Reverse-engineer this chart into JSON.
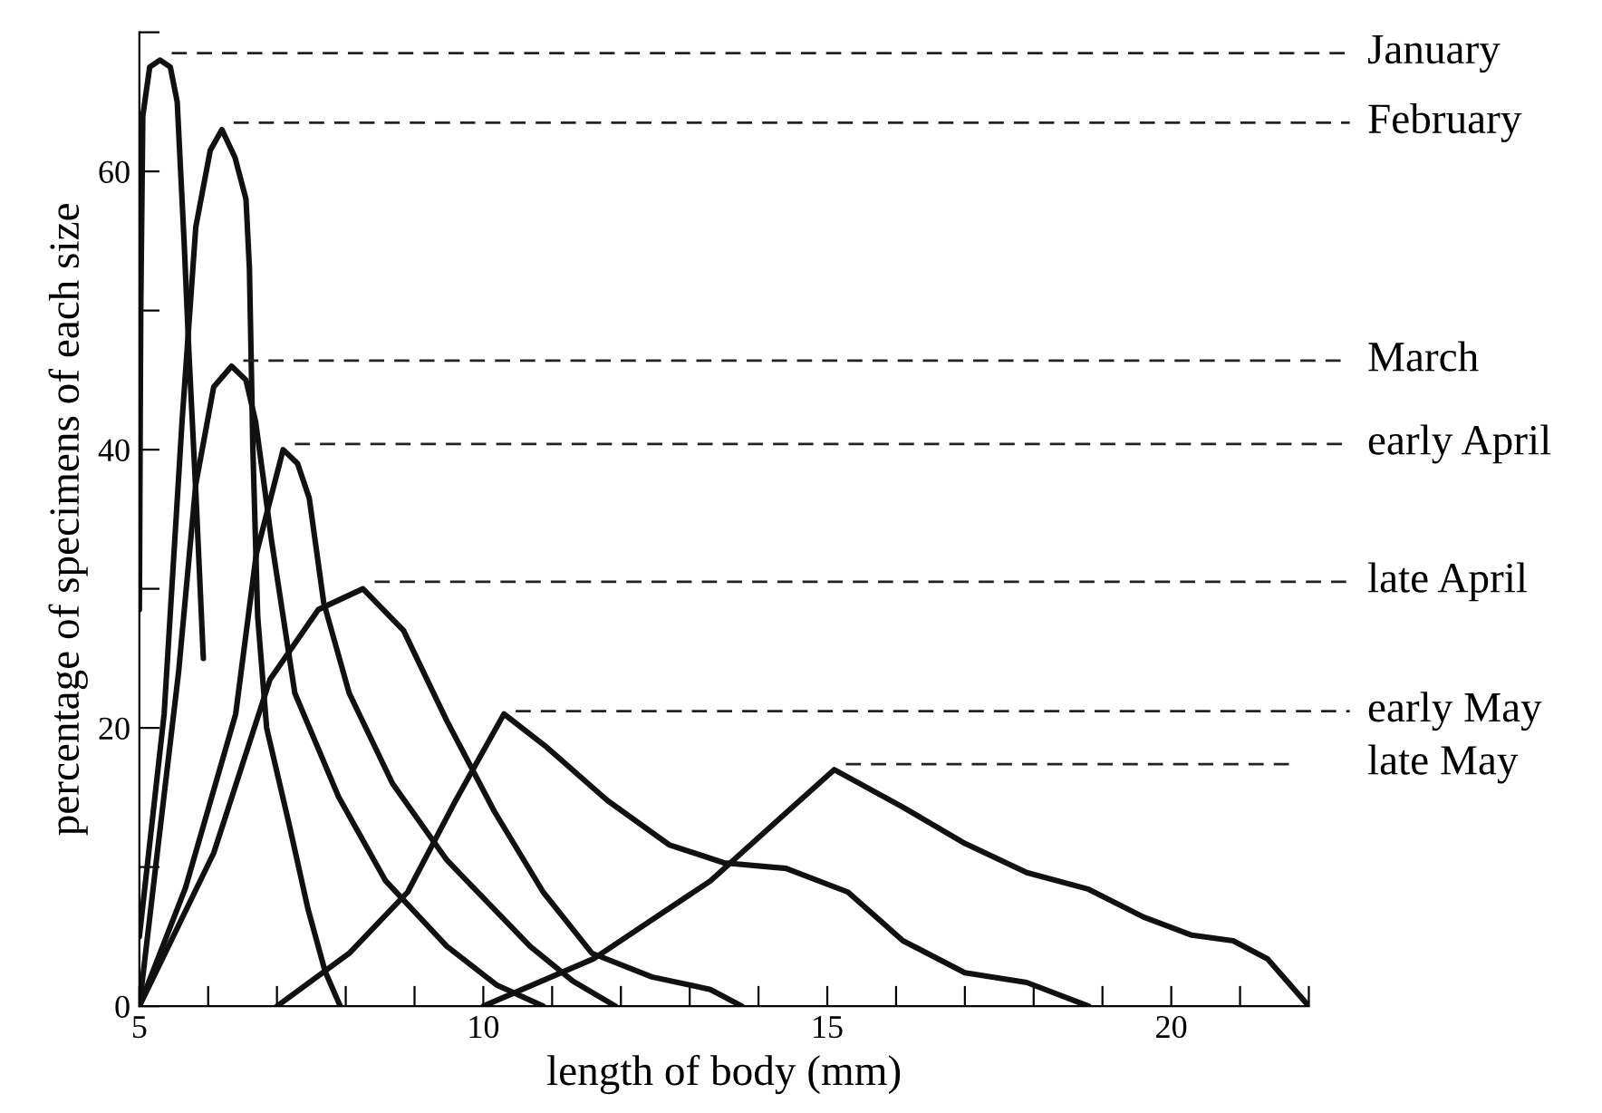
{
  "chart_data": {
    "type": "line",
    "xlabel": "length of body (mm)",
    "ylabel": "percentage of specimens of each size",
    "xlim": [
      5,
      22
    ],
    "ylim": [
      0,
      70
    ],
    "xticks": [
      5,
      {
        "value": 6,
        "label": null
      },
      {
        "value": 7,
        "label": null
      },
      {
        "value": 8,
        "label": null
      },
      {
        "value": 9,
        "label": null
      },
      10,
      {
        "value": 11,
        "label": null
      },
      {
        "value": 12,
        "label": null
      },
      {
        "value": 13,
        "label": null
      },
      {
        "value": 14,
        "label": null
      },
      15,
      {
        "value": 16,
        "label": null
      },
      {
        "value": 17,
        "label": null
      },
      {
        "value": 18,
        "label": null
      },
      {
        "value": 19,
        "label": null
      },
      20,
      {
        "value": 21,
        "label": null
      },
      {
        "value": 22,
        "label": null
      }
    ],
    "yticks": [
      0,
      {
        "value": 10,
        "label": null
      },
      20,
      {
        "value": 30,
        "label": null
      },
      40,
      {
        "value": 50,
        "label": null
      },
      60,
      {
        "value": 70,
        "label": null
      }
    ],
    "grid": false,
    "legend": false,
    "marker": "none",
    "line_style": "solid",
    "series": [
      {
        "color": "#111111",
        "x": [
          5.0,
          5.02,
          5.05,
          5.15,
          5.3,
          5.45,
          5.55,
          5.6,
          5.65,
          5.72,
          5.82,
          5.93
        ],
        "values": [
          28.5,
          50,
          64,
          67.5,
          68,
          67.5,
          65,
          60,
          55,
          47,
          37,
          25
        ]
      },
      {
        "color": "#111111",
        "x": [
          5.0,
          5.36,
          5.62,
          5.82,
          6.03,
          6.2,
          6.39,
          6.55,
          6.6,
          6.65,
          6.72,
          6.85,
          7.18,
          7.45,
          7.7,
          7.92
        ],
        "values": [
          5,
          21,
          42,
          56,
          61.5,
          63,
          61,
          58,
          53,
          40,
          28,
          20,
          13,
          7,
          2.5,
          0
        ]
      },
      {
        "color": "#111111",
        "x": [
          5.0,
          5.26,
          5.57,
          5.82,
          6.08,
          6.34,
          6.55,
          6.69,
          6.8,
          6.92,
          7.26,
          7.9,
          8.58,
          9.47,
          10.2,
          10.87
        ],
        "values": [
          0,
          11,
          24,
          37.5,
          44.5,
          46,
          45,
          42,
          38,
          33.5,
          22.5,
          15,
          9,
          4.3,
          1.5,
          0
        ]
      },
      {
        "color": "#111111",
        "x": [
          5.0,
          5.67,
          6.4,
          6.7,
          7.09,
          7.3,
          7.47,
          7.68,
          8.05,
          8.68,
          9.47,
          10.68,
          11.3,
          11.92
        ],
        "values": [
          0,
          8.5,
          21,
          32.5,
          40,
          39,
          36.5,
          29,
          22.5,
          16,
          10.5,
          4.3,
          1.8,
          0
        ]
      },
      {
        "color": "#111111",
        "x": [
          5.0,
          6.08,
          6.9,
          7.6,
          8.25,
          8.84,
          9.47,
          10.16,
          10.87,
          11.58,
          12.45,
          13.3,
          13.76
        ],
        "values": [
          0,
          11,
          23.5,
          28.5,
          30,
          27,
          20.5,
          14,
          8.2,
          3.8,
          2.1,
          1.2,
          0
        ]
      },
      {
        "color": "#111111",
        "x": [
          7.0,
          8.05,
          8.9,
          9.6,
          10.3,
          10.9,
          11.8,
          12.7,
          13.5,
          14.4,
          15.3,
          16.1,
          17.0,
          17.9,
          18.8
        ],
        "values": [
          0,
          3.8,
          8.2,
          14.8,
          21,
          18.7,
          14.8,
          11.6,
          10.3,
          9.9,
          8.2,
          4.7,
          2.4,
          1.7,
          0
        ]
      },
      {
        "color": "#111111",
        "x": [
          10.0,
          11.6,
          13.3,
          14.2,
          15.1,
          16.1,
          17.0,
          17.9,
          18.8,
          19.6,
          20.3,
          20.9,
          21.4,
          22.0
        ],
        "values": [
          0,
          3.4,
          9,
          13,
          17,
          14.3,
          11.7,
          9.6,
          8.4,
          6.4,
          5.1,
          4.7,
          3.4,
          0
        ]
      }
    ],
    "ref_lines": [
      {
        "axis": "y",
        "value": 68.5,
        "label": "January",
        "line_style": "dashed"
      },
      {
        "axis": "y",
        "value": 63.5,
        "label": "February",
        "line_style": "dashed"
      },
      {
        "axis": "y",
        "value": 46.4,
        "label": "March",
        "line_style": "dashed"
      },
      {
        "axis": "y",
        "value": 40.4,
        "label": "early April",
        "line_style": "dashed"
      },
      {
        "axis": "y",
        "value": 30.5,
        "label": "late April",
        "line_style": "dashed"
      },
      {
        "axis": "y",
        "value": 21.2,
        "label": "early May",
        "line_style": "dashed"
      },
      {
        "axis": "y",
        "value": 17.4,
        "label": "late May",
        "line_style": "dashed"
      }
    ]
  }
}
